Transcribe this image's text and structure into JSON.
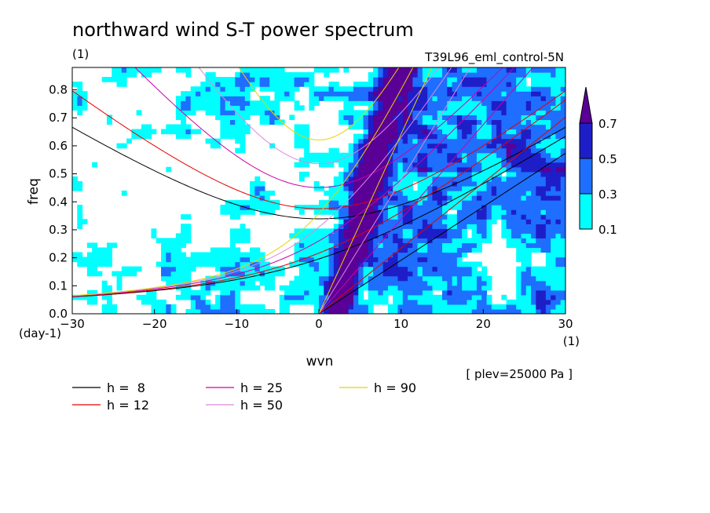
{
  "chart_data": {
    "type": "heatmap",
    "title": "northward wind S-T power spectrum",
    "subtitle_left": "(1)",
    "subtitle_right": "T39L96_eml_control-5N",
    "xlabel": "wvn",
    "ylabel": "freq",
    "x_unit": "(1)",
    "y_unit": "(day-1)",
    "annotation": "[ plev=25000 Pa ]",
    "xlim": [
      -30,
      30
    ],
    "ylim": [
      0.0,
      0.88
    ],
    "x_ticks": [
      {
        "value": -30,
        "label": "-30"
      },
      {
        "value": -20,
        "label": "-20"
      },
      {
        "value": -10,
        "label": "-10"
      },
      {
        "value": 0,
        "label": "0"
      },
      {
        "value": 10,
        "label": "10"
      },
      {
        "value": 20,
        "label": "20"
      },
      {
        "value": 30,
        "label": "30"
      }
    ],
    "y_ticks": [
      {
        "value": 0.0,
        "label": "0.0"
      },
      {
        "value": 0.1,
        "label": "0.1"
      },
      {
        "value": 0.2,
        "label": "0.2"
      },
      {
        "value": 0.3,
        "label": "0.3"
      },
      {
        "value": 0.4,
        "label": "0.4"
      },
      {
        "value": 0.5,
        "label": "0.5"
      },
      {
        "value": 0.6,
        "label": "0.6"
      },
      {
        "value": 0.7,
        "label": "0.7"
      },
      {
        "value": 0.8,
        "label": "0.8"
      }
    ],
    "colorbar": {
      "levels": [
        0.1,
        0.3,
        0.5,
        0.7
      ],
      "labels": [
        "0.1",
        "0.3",
        "0.5",
        "0.7"
      ],
      "colors": [
        "#00ffff",
        "#1e6eff",
        "#1e1ec8",
        "#5a0096"
      ],
      "extend": "max"
    },
    "dispersion_curves": [
      {
        "h": 8,
        "label": "h =  8",
        "color": "#000000"
      },
      {
        "h": 12,
        "label": "h = 12",
        "color": "#e60000"
      },
      {
        "h": 25,
        "label": "h = 25",
        "color": "#cc00aa"
      },
      {
        "h": 50,
        "label": "h = 50",
        "color": "#dd88dd"
      },
      {
        "h": 90,
        "label": "h = 90",
        "color": "#e6d200"
      }
    ],
    "legend_position": "bottom",
    "grid": false
  }
}
